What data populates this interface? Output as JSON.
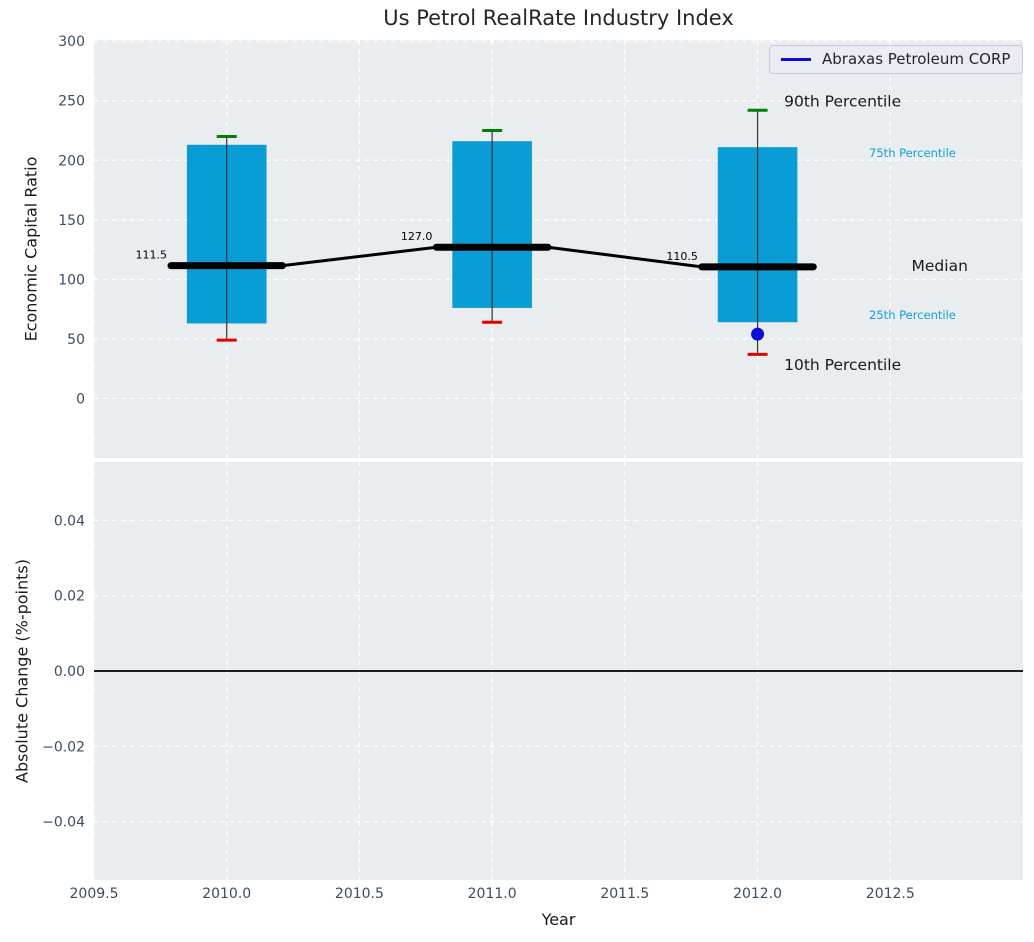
{
  "figure": {
    "title": "Us Petrol RealRate Industry Index"
  },
  "legend": {
    "label": "Abraxas Petroleum CORP"
  },
  "colors": {
    "plot_bg": "#e9edef",
    "grid": "#ffffff",
    "box": "#0a9cd4",
    "accent_text": "#14a0d6",
    "green_cap": "#008000",
    "red_cap": "#e50000",
    "company_blue": "#0d0dd6",
    "tick_text": "#3b4d63",
    "dark_text": "#1a1a1a",
    "whisker": "#333333",
    "median_line": "#000000"
  },
  "chart_data": [
    {
      "type": "boxplot",
      "panel": "top",
      "ylabel": "Economic Capital Ratio",
      "ylim": [
        -50,
        301
      ],
      "xlim": [
        2009.5,
        2013.0
      ],
      "grid": true,
      "yticks": [
        {
          "value": 0,
          "label": "0"
        },
        {
          "value": 50,
          "label": "50"
        },
        {
          "value": 100,
          "label": "100"
        },
        {
          "value": 150,
          "label": "150"
        },
        {
          "value": 200,
          "label": "200"
        },
        {
          "value": 250,
          "label": "250"
        },
        {
          "value": 300,
          "label": "300"
        }
      ],
      "x": [
        2010,
        2011,
        2012
      ],
      "series": [
        {
          "name": "90th Percentile",
          "values": [
            220,
            225,
            242
          ]
        },
        {
          "name": "75th Percentile",
          "values": [
            213,
            216,
            211
          ]
        },
        {
          "name": "Median",
          "values": [
            111.5,
            127.0,
            110.5
          ]
        },
        {
          "name": "25th Percentile",
          "values": [
            63,
            76,
            64
          ]
        },
        {
          "name": "10th Percentile",
          "values": [
            49,
            64,
            37
          ]
        }
      ],
      "median_labels": [
        "111.5",
        "127.0",
        "110.5"
      ],
      "company_point": {
        "label": "Abraxas Petroleum CORP",
        "x": 2012,
        "y": 54
      },
      "annotations": [
        {
          "text": "90th Percentile",
          "x": 2012.1,
          "y": 250,
          "style": "dark"
        },
        {
          "text": "75th Percentile",
          "x": 2012.42,
          "y": 206,
          "style": "accent"
        },
        {
          "text": "Median",
          "x": 2012.58,
          "y": 112,
          "style": "dark"
        },
        {
          "text": "25th Percentile",
          "x": 2012.42,
          "y": 70,
          "style": "accent"
        },
        {
          "text": "10th Percentile",
          "x": 2012.1,
          "y": 29,
          "style": "dark"
        }
      ]
    },
    {
      "type": "line",
      "panel": "bottom",
      "ylabel": "Absolute Change (%-points)",
      "xlabel": "Year",
      "ylim": [
        -0.0555,
        0.0555
      ],
      "xlim": [
        2009.5,
        2013.0
      ],
      "grid": true,
      "zero_line": true,
      "yticks": [
        {
          "value": 0.04,
          "label": "0.04"
        },
        {
          "value": 0.02,
          "label": "0.02"
        },
        {
          "value": 0.0,
          "label": "0.00"
        },
        {
          "value": -0.02,
          "label": "−0.02"
        },
        {
          "value": -0.04,
          "label": "−0.04"
        }
      ],
      "xticks": [
        {
          "value": 2009.5,
          "label": "2009.5"
        },
        {
          "value": 2010.0,
          "label": "2010.0"
        },
        {
          "value": 2010.5,
          "label": "2010.5"
        },
        {
          "value": 2011.0,
          "label": "2011.0"
        },
        {
          "value": 2011.5,
          "label": "2011.5"
        },
        {
          "value": 2012.0,
          "label": "2012.0"
        },
        {
          "value": 2012.5,
          "label": "2012.5"
        }
      ],
      "series": []
    }
  ]
}
